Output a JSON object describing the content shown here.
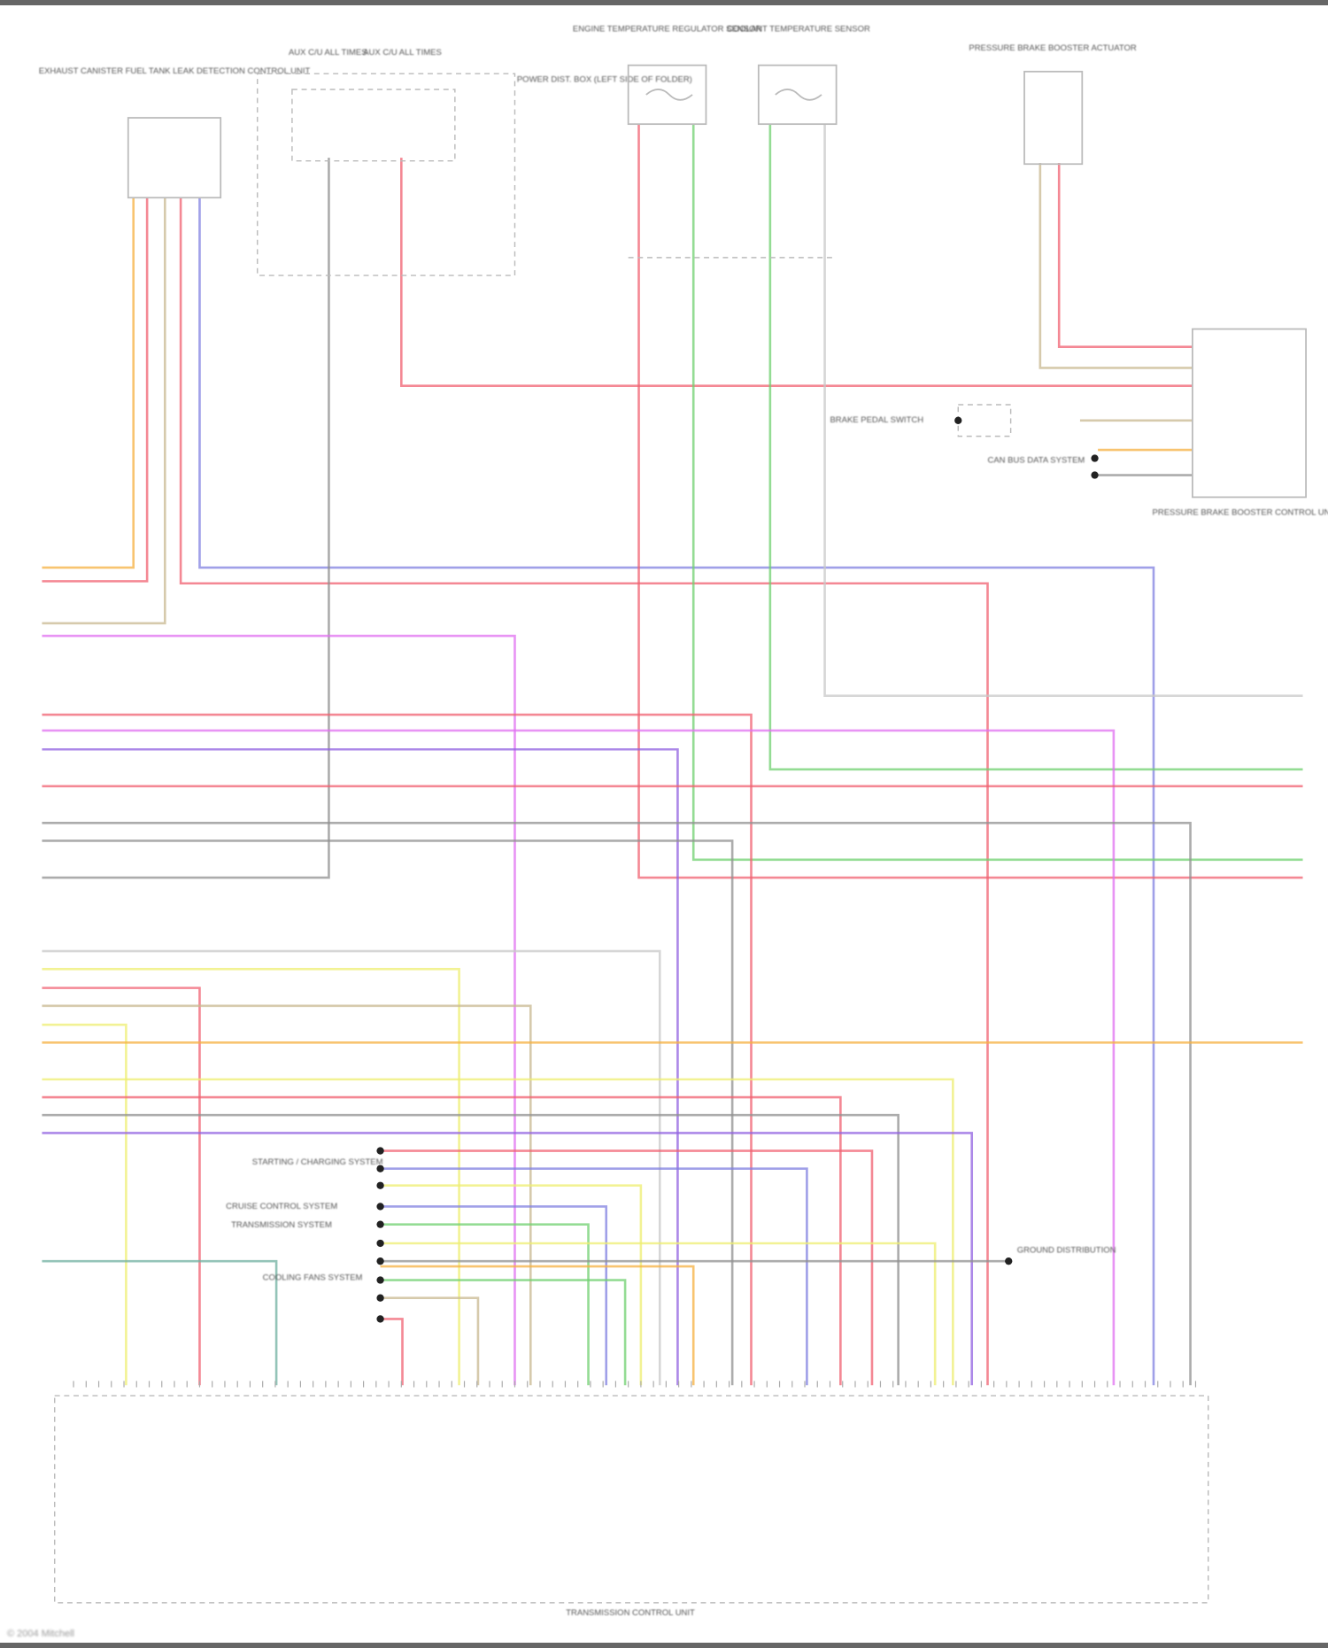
{
  "components": {
    "evap_unit": "EXHAUST CANISTER FUEL TANK LEAK DETECTION CONTROL UNIT",
    "relay_a": "AUX C/U ALL TIMES",
    "relay_b": "AUX C/U ALL TIMES",
    "relay_box": "POWER DIST. BOX (LEFT SIDE OF FOLDER)",
    "sensor_a": "ENGINE TEMPERATURE REGULATOR SENSOR",
    "sensor_b": "COOLANT TEMPERATURE SENSOR",
    "actuator": "PRESSURE BRAKE BOOSTER ACTUATOR",
    "brake_unit": "PRESSURE BRAKE BOOSTER CONTROL UNIT",
    "brake_switch": "BRAKE PEDAL SWITCH",
    "canbus": "CAN BUS DATA SYSTEM",
    "splice_a": "STARTING / CHARGING SYSTEM",
    "splice_b": "CRUISE CONTROL SYSTEM",
    "splice_c": "TRANSMISSION SYSTEM",
    "splice_d": "COOLING FANS SYSTEM",
    "ground": "GROUND DISTRIBUTION",
    "tcu": "TRANSMISSION CONTROL UNIT"
  },
  "wire_colors": {
    "red": "#f06070",
    "orange": "#f5b040",
    "yellow": "#eeee70",
    "tan": "#c8b890",
    "blue": "#8080e0",
    "purple": "#9060e0",
    "pink": "#e070f0",
    "green": "#70d070",
    "gray": "#909090",
    "lightgray": "#c8c8c8",
    "teal": "#70b0a0"
  },
  "footer": "© 2004 Mitchell"
}
